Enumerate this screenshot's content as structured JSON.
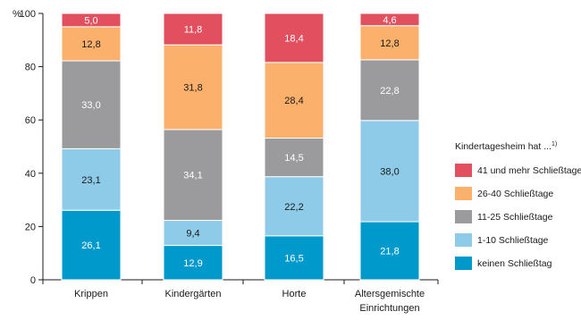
{
  "chart_data": {
    "type": "bar",
    "stacked": true,
    "y_unit": "%",
    "ylim": [
      0,
      100
    ],
    "yticks": [
      0,
      20,
      40,
      60,
      80,
      100
    ],
    "grid": false,
    "legend_title": "Kindertagesheim hat ...",
    "legend_title_superscript": "1)",
    "legend_position": "right",
    "categories": [
      [
        "Krippen"
      ],
      [
        "Kindergärten"
      ],
      [
        "Horte"
      ],
      [
        "Altersgemischte",
        "Einrichtungen"
      ]
    ],
    "series": [
      {
        "name": "keinen Schließtag",
        "color": "#0099cc",
        "text_color": "#ffffff",
        "values": [
          26.1,
          12.9,
          16.5,
          21.8
        ]
      },
      {
        "name": "1-10 Schließtage",
        "color": "#8ecbe8",
        "text_color": "#1a1a1a",
        "values": [
          23.1,
          9.4,
          22.2,
          38.0
        ]
      },
      {
        "name": "11-25 Schließtage",
        "color": "#9b9a9c",
        "text_color": "#ffffff",
        "values": [
          33.0,
          34.1,
          14.5,
          22.8
        ]
      },
      {
        "name": "26-40 Schließtage",
        "color": "#fbb06b",
        "text_color": "#1a1a1a",
        "values": [
          12.8,
          31.8,
          28.4,
          12.8
        ]
      },
      {
        "name": "41 und mehr Schließtage",
        "color": "#e2505f",
        "text_color": "#ffffff",
        "values": [
          5.0,
          11.8,
          18.4,
          4.6
        ]
      }
    ],
    "display_values": [
      [
        "26,1",
        "12,9",
        "16,5",
        "21,8"
      ],
      [
        "23,1",
        "9,4",
        "22,2",
        "38,0"
      ],
      [
        "33,0",
        "34,1",
        "14,5",
        "22,8"
      ],
      [
        "12,8",
        "31,8",
        "28,4",
        "12,8"
      ],
      [
        "5,0",
        "11,8",
        "18,4",
        "4,6"
      ]
    ],
    "legend_order": [
      4,
      3,
      2,
      1,
      0
    ]
  }
}
